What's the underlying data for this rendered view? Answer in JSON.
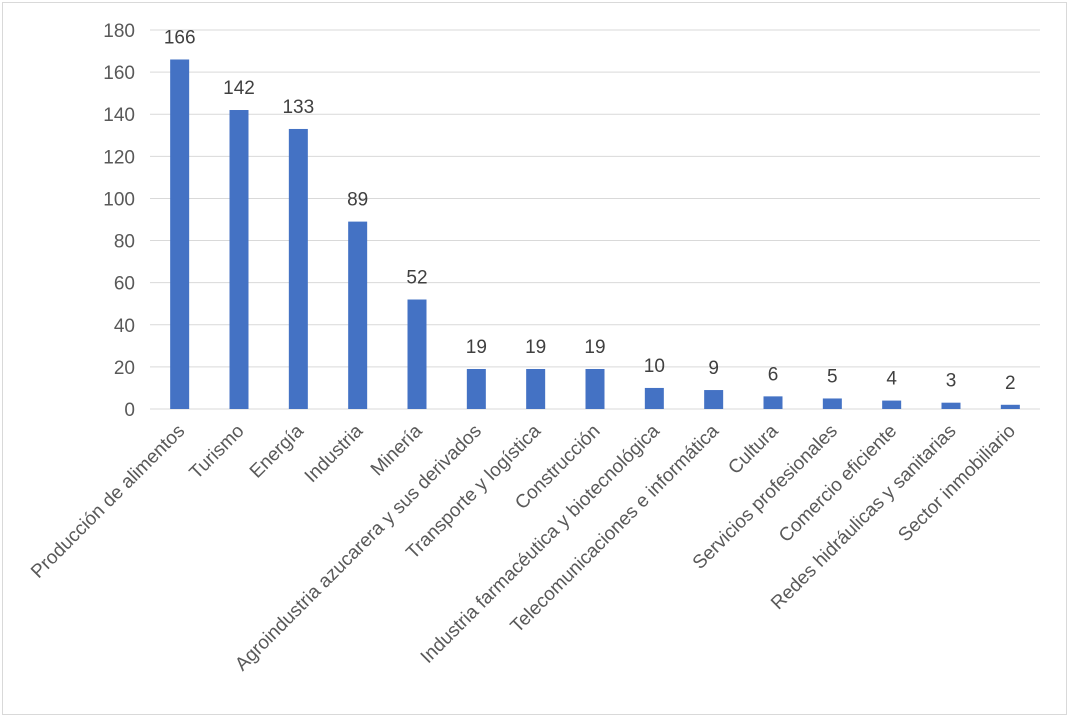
{
  "chart_data": {
    "type": "bar",
    "title": "",
    "xlabel": "",
    "ylabel": "",
    "categories": [
      "Producción de alimentos",
      "Turismo",
      "Energía",
      "Industria",
      "Minería",
      "Agroindustria azucarera y sus derivados",
      "Transporte y logística",
      "Construcción",
      "Industria farmacéutica y biotecnológica",
      "Telecomunicaciones e informática",
      "Cultura",
      "Servicios profesionales",
      "Comercio eficiente",
      "Redes hidráulicas y sanitarias",
      "Sector inmobiliario"
    ],
    "values": [
      166,
      142,
      133,
      89,
      52,
      19,
      19,
      19,
      10,
      9,
      6,
      5,
      4,
      3,
      2
    ],
    "ylim": [
      0,
      180
    ],
    "yticks": [
      0,
      20,
      40,
      60,
      80,
      100,
      120,
      140,
      160,
      180
    ],
    "grid": true,
    "legend": "none",
    "bar_color": "#4472c4"
  }
}
